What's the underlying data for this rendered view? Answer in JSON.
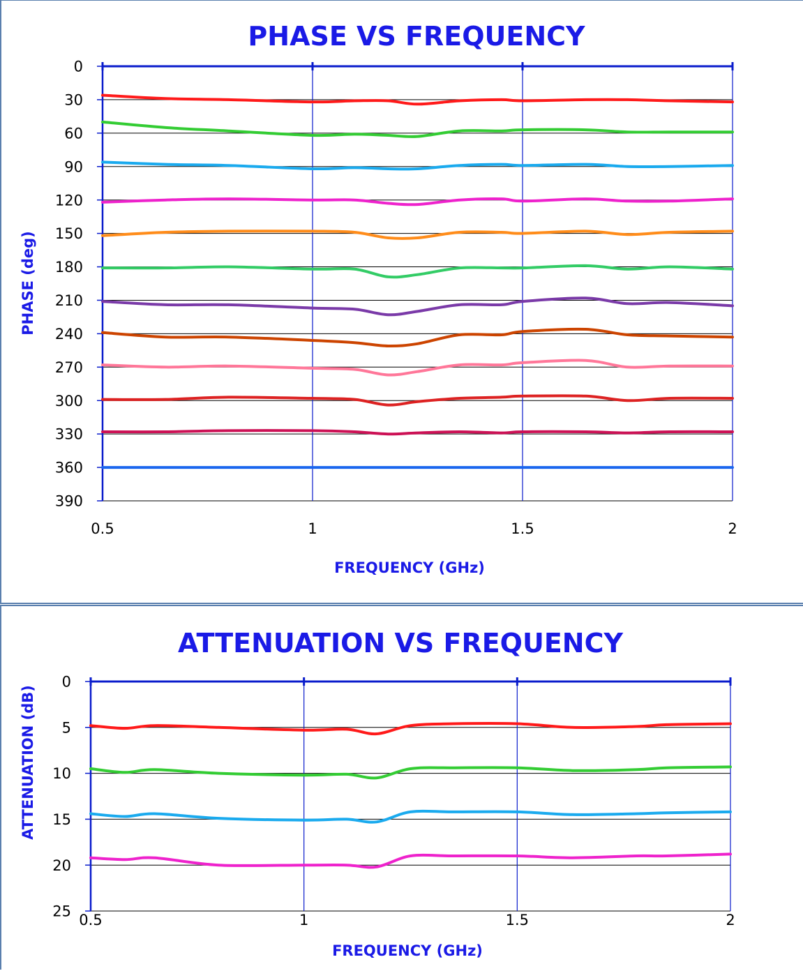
{
  "colors": {
    "axis": "#0a1ccc",
    "grid_v": "#0a1ccc",
    "grid_h": "#000000",
    "title": "#1a1ae6"
  },
  "chart_data": [
    {
      "type": "line",
      "title": "PHASE VS FREQUENCY",
      "xlabel": "FREQUENCY (GHz)",
      "ylabel": "PHASE (deg)",
      "xlim": [
        0.5,
        2
      ],
      "ylim": [
        0,
        390
      ],
      "y_inverted": true,
      "x_ticks": [
        0.5,
        1,
        1.5,
        2
      ],
      "y_ticks": [
        0,
        30,
        60,
        90,
        120,
        150,
        180,
        210,
        240,
        270,
        300,
        330,
        360,
        390
      ],
      "grid": true,
      "legend": "none",
      "x": [
        0.5,
        0.65,
        0.8,
        1.0,
        1.1,
        1.18,
        1.25,
        1.35,
        1.45,
        1.5,
        1.65,
        1.75,
        1.85,
        2.0
      ],
      "series": [
        {
          "color": "#ff1a1a",
          "values": [
            26,
            29,
            30,
            32,
            31,
            31,
            34,
            31,
            30,
            31,
            30,
            30,
            31,
            32
          ]
        },
        {
          "color": "#33cc33",
          "values": [
            50,
            55,
            58,
            62,
            61,
            62,
            63,
            58,
            58,
            57,
            57,
            59,
            59,
            59
          ]
        },
        {
          "color": "#1aaaee",
          "values": [
            86,
            88,
            89,
            92,
            91,
            92,
            92,
            89,
            88,
            89,
            88,
            90,
            90,
            89
          ]
        },
        {
          "color": "#ee22cc",
          "values": [
            122,
            120,
            119,
            120,
            120,
            123,
            124,
            120,
            119,
            121,
            119,
            121,
            121,
            119
          ]
        },
        {
          "color": "#ff8c1a",
          "values": [
            152,
            149,
            148,
            148,
            149,
            154,
            154,
            149,
            149,
            150,
            148,
            151,
            149,
            148
          ]
        },
        {
          "color": "#33cc66",
          "values": [
            181,
            181,
            180,
            182,
            182,
            189,
            187,
            181,
            181,
            181,
            179,
            182,
            180,
            182
          ]
        },
        {
          "color": "#7a3aa8",
          "values": [
            211,
            214,
            214,
            217,
            218,
            223,
            220,
            214,
            214,
            211,
            208,
            213,
            212,
            215
          ]
        },
        {
          "color": "#cc4400",
          "values": [
            239,
            243,
            243,
            246,
            248,
            251,
            249,
            241,
            241,
            238,
            236,
            241,
            242,
            243
          ]
        },
        {
          "color": "#ff7799",
          "values": [
            268,
            270,
            269,
            271,
            272,
            277,
            274,
            268,
            268,
            266,
            264,
            270,
            269,
            269
          ]
        },
        {
          "color": "#dd2222",
          "values": [
            299,
            299,
            297,
            298,
            299,
            304,
            301,
            298,
            297,
            296,
            296,
            300,
            298,
            298
          ]
        },
        {
          "color": "#cc1155",
          "values": [
            328,
            328,
            327,
            327,
            328,
            330,
            329,
            328,
            329,
            328,
            328,
            329,
            328,
            328
          ]
        },
        {
          "color": "#1a66ee",
          "values": [
            360,
            360,
            360,
            360,
            360,
            360,
            360,
            360,
            360,
            360,
            360,
            360,
            360,
            360
          ]
        }
      ]
    },
    {
      "type": "line",
      "title": "ATTENUATION VS FREQUENCY",
      "xlabel": "FREQUENCY (GHz)",
      "ylabel": "ATTENUATION (dB)",
      "xlim": [
        0.5,
        2
      ],
      "ylim": [
        0,
        25
      ],
      "y_inverted": true,
      "x_ticks": [
        0.5,
        1,
        1.5,
        2
      ],
      "y_ticks": [
        0,
        5,
        10,
        15,
        20,
        25
      ],
      "grid": true,
      "legend": "none",
      "x": [
        0.5,
        0.58,
        0.65,
        0.8,
        1.0,
        1.1,
        1.17,
        1.25,
        1.35,
        1.5,
        1.63,
        1.78,
        1.85,
        2.0
      ],
      "series": [
        {
          "color": "#ff1a1a",
          "values": [
            4.8,
            5.1,
            4.8,
            5.0,
            5.3,
            5.2,
            5.7,
            4.8,
            4.6,
            4.6,
            5.0,
            4.9,
            4.7,
            4.6
          ]
        },
        {
          "color": "#33cc33",
          "values": [
            9.5,
            9.9,
            9.6,
            10.0,
            10.2,
            10.1,
            10.5,
            9.5,
            9.4,
            9.4,
            9.7,
            9.6,
            9.4,
            9.3
          ]
        },
        {
          "color": "#1aaaee",
          "values": [
            14.4,
            14.7,
            14.4,
            14.9,
            15.1,
            15.0,
            15.3,
            14.2,
            14.2,
            14.2,
            14.5,
            14.4,
            14.3,
            14.2
          ]
        },
        {
          "color": "#ee22cc",
          "values": [
            19.2,
            19.4,
            19.2,
            20.0,
            20.0,
            20.0,
            20.2,
            19.0,
            19.0,
            19.0,
            19.2,
            19.0,
            19.0,
            18.8
          ]
        }
      ]
    }
  ]
}
